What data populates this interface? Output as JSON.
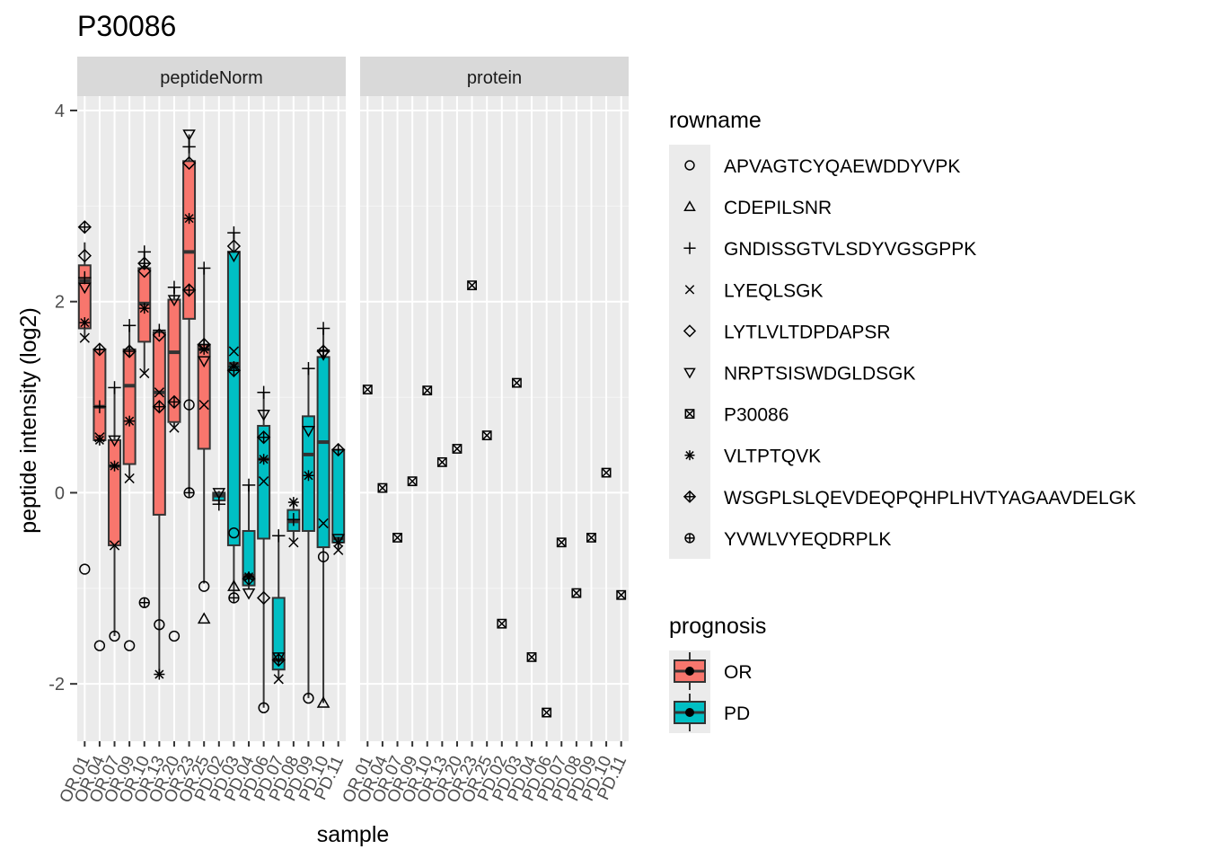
{
  "chart_data": {
    "type": "boxplot",
    "title": "P30086",
    "xlabel": "sample",
    "ylabel": "peptide intensity (log2)",
    "ylim": [
      -2.6,
      4.15
    ],
    "y_ticks": [
      -2,
      0,
      2,
      4
    ],
    "grid": true,
    "legend_placement": "right",
    "categories": [
      "OR.01",
      "OR.04",
      "OR.07",
      "OR.09",
      "OR.10",
      "OR.13",
      "OR.20",
      "OR.23",
      "OR.25",
      "PD.02",
      "PD.03",
      "PD.04",
      "PD.06",
      "PD.07",
      "PD.08",
      "PD.09",
      "PD.10",
      "PD.11"
    ],
    "facets": [
      "peptideNorm",
      "protein"
    ],
    "legend_rowname": {
      "title": "rowname",
      "entries": [
        {
          "name": "APVAGTCYQAEWDDYVPK",
          "shape": "circle"
        },
        {
          "name": "CDEPILSNR",
          "shape": "triangle"
        },
        {
          "name": "GNDISSGTVLSDYVGSGPPK",
          "shape": "plus"
        },
        {
          "name": "LYEQLSGK",
          "shape": "cross"
        },
        {
          "name": "LYTLVLTDPDAPSR",
          "shape": "diamond"
        },
        {
          "name": "NRPTSISWDGLDSGK",
          "shape": "triangle-down"
        },
        {
          "name": "P30086",
          "shape": "square-cross"
        },
        {
          "name": "VLTPTQVK",
          "shape": "asterisk"
        },
        {
          "name": "WSGPLSLQEVDEQPQHPLHVTYAGAAVDELGK",
          "shape": "diamond-plus"
        },
        {
          "name": "YVWLVYEQDRPLK",
          "shape": "circle-plus"
        }
      ]
    },
    "legend_prognosis": {
      "title": "prognosis",
      "entries": [
        {
          "name": "OR",
          "color": "#F8766D"
        },
        {
          "name": "PD",
          "color": "#00BFC4"
        }
      ]
    },
    "peptideNorm_boxes": [
      {
        "sample": "OR.01",
        "prognosis": "OR",
        "lower": 1.62,
        "q1": 1.72,
        "median": 2.22,
        "q3": 2.38,
        "upper": 2.62
      },
      {
        "sample": "OR.04",
        "prognosis": "OR",
        "lower": 0.55,
        "q1": 0.55,
        "median": 0.9,
        "q3": 1.5,
        "upper": 1.52
      },
      {
        "sample": "OR.07",
        "prognosis": "OR",
        "lower": -1.5,
        "q1": -0.55,
        "median": 0.28,
        "q3": 0.55,
        "upper": 1.1
      },
      {
        "sample": "OR.09",
        "prognosis": "OR",
        "lower": 0.15,
        "q1": 0.3,
        "median": 1.12,
        "q3": 1.5,
        "upper": 1.75
      },
      {
        "sample": "OR.10",
        "prognosis": "OR",
        "lower": 1.25,
        "q1": 1.58,
        "median": 1.98,
        "q3": 2.35,
        "upper": 2.52
      },
      {
        "sample": "OR.13",
        "prognosis": "OR",
        "lower": -1.9,
        "q1": -0.23,
        "median": 1.05,
        "q3": 1.68,
        "upper": 1.7
      },
      {
        "sample": "OR.20",
        "prognosis": "OR",
        "lower": 0.68,
        "q1": 0.74,
        "median": 1.47,
        "q3": 2.02,
        "upper": 2.15
      },
      {
        "sample": "OR.23",
        "prognosis": "OR",
        "lower": 0.0,
        "q1": 1.82,
        "median": 2.52,
        "q3": 3.47,
        "upper": 3.75
      },
      {
        "sample": "OR.25",
        "prognosis": "OR",
        "lower": -0.95,
        "q1": 0.46,
        "median": 1.5,
        "q3": 1.55,
        "upper": 2.35
      },
      {
        "sample": "PD.02",
        "prognosis": "PD",
        "lower": -0.12,
        "q1": -0.08,
        "median": -0.03,
        "q3": 0.0,
        "upper": 0.02
      },
      {
        "sample": "PD.03",
        "prognosis": "PD",
        "lower": -1.05,
        "q1": -0.55,
        "median": 1.35,
        "q3": 2.52,
        "upper": 2.72
      },
      {
        "sample": "PD.04",
        "prognosis": "PD",
        "lower": -1.0,
        "q1": -0.97,
        "median": -0.87,
        "q3": -0.4,
        "upper": 0.08
      },
      {
        "sample": "PD.06",
        "prognosis": "PD",
        "lower": -2.25,
        "q1": -0.48,
        "median": 0.35,
        "q3": 0.7,
        "upper": 1.05
      },
      {
        "sample": "PD.07",
        "prognosis": "PD",
        "lower": -1.95,
        "q1": -1.85,
        "median": -1.75,
        "q3": -1.1,
        "upper": -0.45
      },
      {
        "sample": "PD.08",
        "prognosis": "PD",
        "lower": -0.52,
        "q1": -0.4,
        "median": -0.3,
        "q3": -0.18,
        "upper": -0.1
      },
      {
        "sample": "PD.09",
        "prognosis": "PD",
        "lower": -2.15,
        "q1": -0.4,
        "median": 0.4,
        "q3": 0.8,
        "upper": 1.3
      },
      {
        "sample": "PD.10",
        "prognosis": "PD",
        "lower": -2.2,
        "q1": -0.57,
        "median": 0.53,
        "q3": 1.42,
        "upper": 1.72
      },
      {
        "sample": "PD.11",
        "prognosis": "PD",
        "lower": -0.6,
        "q1": -0.52,
        "median": -0.48,
        "q3": 0.45,
        "upper": 0.45
      }
    ],
    "peptideNorm_points": [
      {
        "sample": "OR.01",
        "shape": "circle",
        "y": -0.8
      },
      {
        "sample": "OR.01",
        "shape": "plus",
        "y": 2.25
      },
      {
        "sample": "OR.01",
        "shape": "cross",
        "y": 1.62
      },
      {
        "sample": "OR.01",
        "shape": "diamond",
        "y": 2.48
      },
      {
        "sample": "OR.01",
        "shape": "triangle-down",
        "y": 2.15
      },
      {
        "sample": "OR.01",
        "shape": "asterisk",
        "y": 1.78
      },
      {
        "sample": "OR.01",
        "shape": "diamond-plus",
        "y": 2.78
      },
      {
        "sample": "OR.04",
        "shape": "circle",
        "y": -1.6
      },
      {
        "sample": "OR.04",
        "shape": "plus",
        "y": 0.9
      },
      {
        "sample": "OR.04",
        "shape": "cross",
        "y": 0.58
      },
      {
        "sample": "OR.04",
        "shape": "asterisk",
        "y": 0.55
      },
      {
        "sample": "OR.04",
        "shape": "diamond-plus",
        "y": 1.5
      },
      {
        "sample": "OR.07",
        "shape": "circle",
        "y": -1.5
      },
      {
        "sample": "OR.07",
        "shape": "plus",
        "y": 1.1
      },
      {
        "sample": "OR.07",
        "shape": "cross",
        "y": -0.55
      },
      {
        "sample": "OR.07",
        "shape": "triangle-down",
        "y": 0.55
      },
      {
        "sample": "OR.07",
        "shape": "asterisk",
        "y": 0.28
      },
      {
        "sample": "OR.09",
        "shape": "circle",
        "y": -1.6
      },
      {
        "sample": "OR.09",
        "shape": "plus",
        "y": 1.75
      },
      {
        "sample": "OR.09",
        "shape": "cross",
        "y": 0.15
      },
      {
        "sample": "OR.09",
        "shape": "diamond",
        "y": 1.48
      },
      {
        "sample": "OR.09",
        "shape": "asterisk",
        "y": 0.75
      },
      {
        "sample": "OR.09",
        "shape": "diamond-plus",
        "y": 1.48
      },
      {
        "sample": "OR.10",
        "shape": "circle-plus",
        "y": -1.15
      },
      {
        "sample": "OR.10",
        "shape": "plus",
        "y": 2.52
      },
      {
        "sample": "OR.10",
        "shape": "cross",
        "y": 1.25
      },
      {
        "sample": "OR.10",
        "shape": "diamond",
        "y": 2.32
      },
      {
        "sample": "OR.10",
        "shape": "asterisk",
        "y": 1.93
      },
      {
        "sample": "OR.10",
        "shape": "diamond-plus",
        "y": 2.4
      },
      {
        "sample": "OR.13",
        "shape": "circle",
        "y": -1.38
      },
      {
        "sample": "OR.13",
        "shape": "plus",
        "y": 1.7
      },
      {
        "sample": "OR.13",
        "shape": "cross",
        "y": 1.05
      },
      {
        "sample": "OR.13",
        "shape": "diamond",
        "y": 1.65
      },
      {
        "sample": "OR.13",
        "shape": "asterisk",
        "y": -1.9
      },
      {
        "sample": "OR.13",
        "shape": "diamond-plus",
        "y": 0.9
      },
      {
        "sample": "OR.20",
        "shape": "circle",
        "y": -1.5
      },
      {
        "sample": "OR.20",
        "shape": "plus",
        "y": 2.15
      },
      {
        "sample": "OR.20",
        "shape": "cross",
        "y": 0.68
      },
      {
        "sample": "OR.20",
        "shape": "triangle-down",
        "y": 2.02
      },
      {
        "sample": "OR.20",
        "shape": "diamond-plus",
        "y": 0.95
      },
      {
        "sample": "OR.23",
        "shape": "circle",
        "y": 0.92
      },
      {
        "sample": "OR.23",
        "shape": "plus",
        "y": 3.62
      },
      {
        "sample": "OR.23",
        "shape": "triangle-down",
        "y": 3.75
      },
      {
        "sample": "OR.23",
        "shape": "diamond",
        "y": 3.45
      },
      {
        "sample": "OR.23",
        "shape": "asterisk",
        "y": 2.87
      },
      {
        "sample": "OR.23",
        "shape": "diamond-plus",
        "y": 2.12
      },
      {
        "sample": "OR.23",
        "shape": "circle-plus",
        "y": 0.0
      },
      {
        "sample": "OR.25",
        "shape": "circle",
        "y": -0.98
      },
      {
        "sample": "OR.25",
        "shape": "triangle",
        "y": -1.32
      },
      {
        "sample": "OR.25",
        "shape": "plus",
        "y": 2.35
      },
      {
        "sample": "OR.25",
        "shape": "cross",
        "y": 0.92
      },
      {
        "sample": "OR.25",
        "shape": "triangle-down",
        "y": 1.38
      },
      {
        "sample": "OR.25",
        "shape": "asterisk",
        "y": 1.5
      },
      {
        "sample": "OR.25",
        "shape": "diamond-plus",
        "y": 1.55
      },
      {
        "sample": "PD.02",
        "shape": "plus",
        "y": -0.12
      },
      {
        "sample": "PD.02",
        "shape": "triangle-down",
        "y": 0.0
      },
      {
        "sample": "PD.03",
        "shape": "circle",
        "y": -0.42
      },
      {
        "sample": "PD.03",
        "shape": "triangle",
        "y": -0.98
      },
      {
        "sample": "PD.03",
        "shape": "plus",
        "y": 2.72
      },
      {
        "sample": "PD.03",
        "shape": "cross",
        "y": 1.48
      },
      {
        "sample": "PD.03",
        "shape": "diamond",
        "y": 2.58
      },
      {
        "sample": "PD.03",
        "shape": "triangle-down",
        "y": 2.48
      },
      {
        "sample": "PD.03",
        "shape": "asterisk",
        "y": 1.32
      },
      {
        "sample": "PD.03",
        "shape": "diamond-plus",
        "y": 1.28
      },
      {
        "sample": "PD.03",
        "shape": "circle-plus",
        "y": -1.1
      },
      {
        "sample": "PD.04",
        "shape": "plus",
        "y": 0.08
      },
      {
        "sample": "PD.04",
        "shape": "triangle-down",
        "y": -1.05
      },
      {
        "sample": "PD.04",
        "shape": "asterisk",
        "y": -0.88
      },
      {
        "sample": "PD.04",
        "shape": "diamond-plus",
        "y": -0.9
      },
      {
        "sample": "PD.06",
        "shape": "circle",
        "y": -2.25
      },
      {
        "sample": "PD.06",
        "shape": "plus",
        "y": 1.05
      },
      {
        "sample": "PD.06",
        "shape": "cross",
        "y": 0.12
      },
      {
        "sample": "PD.06",
        "shape": "diamond",
        "y": -1.1
      },
      {
        "sample": "PD.06",
        "shape": "triangle-down",
        "y": 0.82
      },
      {
        "sample": "PD.06",
        "shape": "asterisk",
        "y": 0.35
      },
      {
        "sample": "PD.06",
        "shape": "diamond-plus",
        "y": 0.58
      },
      {
        "sample": "PD.07",
        "shape": "plus",
        "y": -0.45
      },
      {
        "sample": "PD.07",
        "shape": "cross",
        "y": -1.95
      },
      {
        "sample": "PD.07",
        "shape": "triangle-down",
        "y": -1.72
      },
      {
        "sample": "PD.07",
        "shape": "diamond-plus",
        "y": -1.75
      },
      {
        "sample": "PD.08",
        "shape": "plus",
        "y": -0.28
      },
      {
        "sample": "PD.08",
        "shape": "cross",
        "y": -0.52
      },
      {
        "sample": "PD.08",
        "shape": "asterisk",
        "y": -0.1
      },
      {
        "sample": "PD.09",
        "shape": "circle",
        "y": -2.15
      },
      {
        "sample": "PD.09",
        "shape": "plus",
        "y": 1.3
      },
      {
        "sample": "PD.09",
        "shape": "triangle-down",
        "y": 0.65
      },
      {
        "sample": "PD.09",
        "shape": "asterisk",
        "y": 0.18
      },
      {
        "sample": "PD.10",
        "shape": "circle",
        "y": -0.67
      },
      {
        "sample": "PD.10",
        "shape": "triangle",
        "y": -2.2
      },
      {
        "sample": "PD.10",
        "shape": "plus",
        "y": 1.72
      },
      {
        "sample": "PD.10",
        "shape": "cross",
        "y": -0.32
      },
      {
        "sample": "PD.10",
        "shape": "triangle-down",
        "y": 1.45
      },
      {
        "sample": "PD.10",
        "shape": "diamond-plus",
        "y": 1.48
      },
      {
        "sample": "PD.11",
        "shape": "cross",
        "y": -0.6
      },
      {
        "sample": "PD.11",
        "shape": "triangle-down",
        "y": -0.48
      },
      {
        "sample": "PD.11",
        "shape": "asterisk",
        "y": -0.52
      },
      {
        "sample": "PD.11",
        "shape": "diamond-plus",
        "y": 0.45
      }
    ],
    "protein_points": [
      {
        "sample": "OR.01",
        "y": 1.08
      },
      {
        "sample": "OR.04",
        "y": 0.05
      },
      {
        "sample": "OR.07",
        "y": -0.47
      },
      {
        "sample": "OR.09",
        "y": 0.12
      },
      {
        "sample": "OR.10",
        "y": 1.07
      },
      {
        "sample": "OR.13",
        "y": 0.32
      },
      {
        "sample": "OR.20",
        "y": 0.46
      },
      {
        "sample": "OR.23",
        "y": 2.17
      },
      {
        "sample": "OR.25",
        "y": 0.6
      },
      {
        "sample": "PD.02",
        "y": -1.37
      },
      {
        "sample": "PD.03",
        "y": 1.15
      },
      {
        "sample": "PD.04",
        "y": -1.72
      },
      {
        "sample": "PD.06",
        "y": -2.3
      },
      {
        "sample": "PD.07",
        "y": -0.52
      },
      {
        "sample": "PD.08",
        "y": -1.05
      },
      {
        "sample": "PD.09",
        "y": -0.47
      },
      {
        "sample": "PD.10",
        "y": 0.21
      },
      {
        "sample": "PD.11",
        "y": -1.07
      }
    ]
  }
}
